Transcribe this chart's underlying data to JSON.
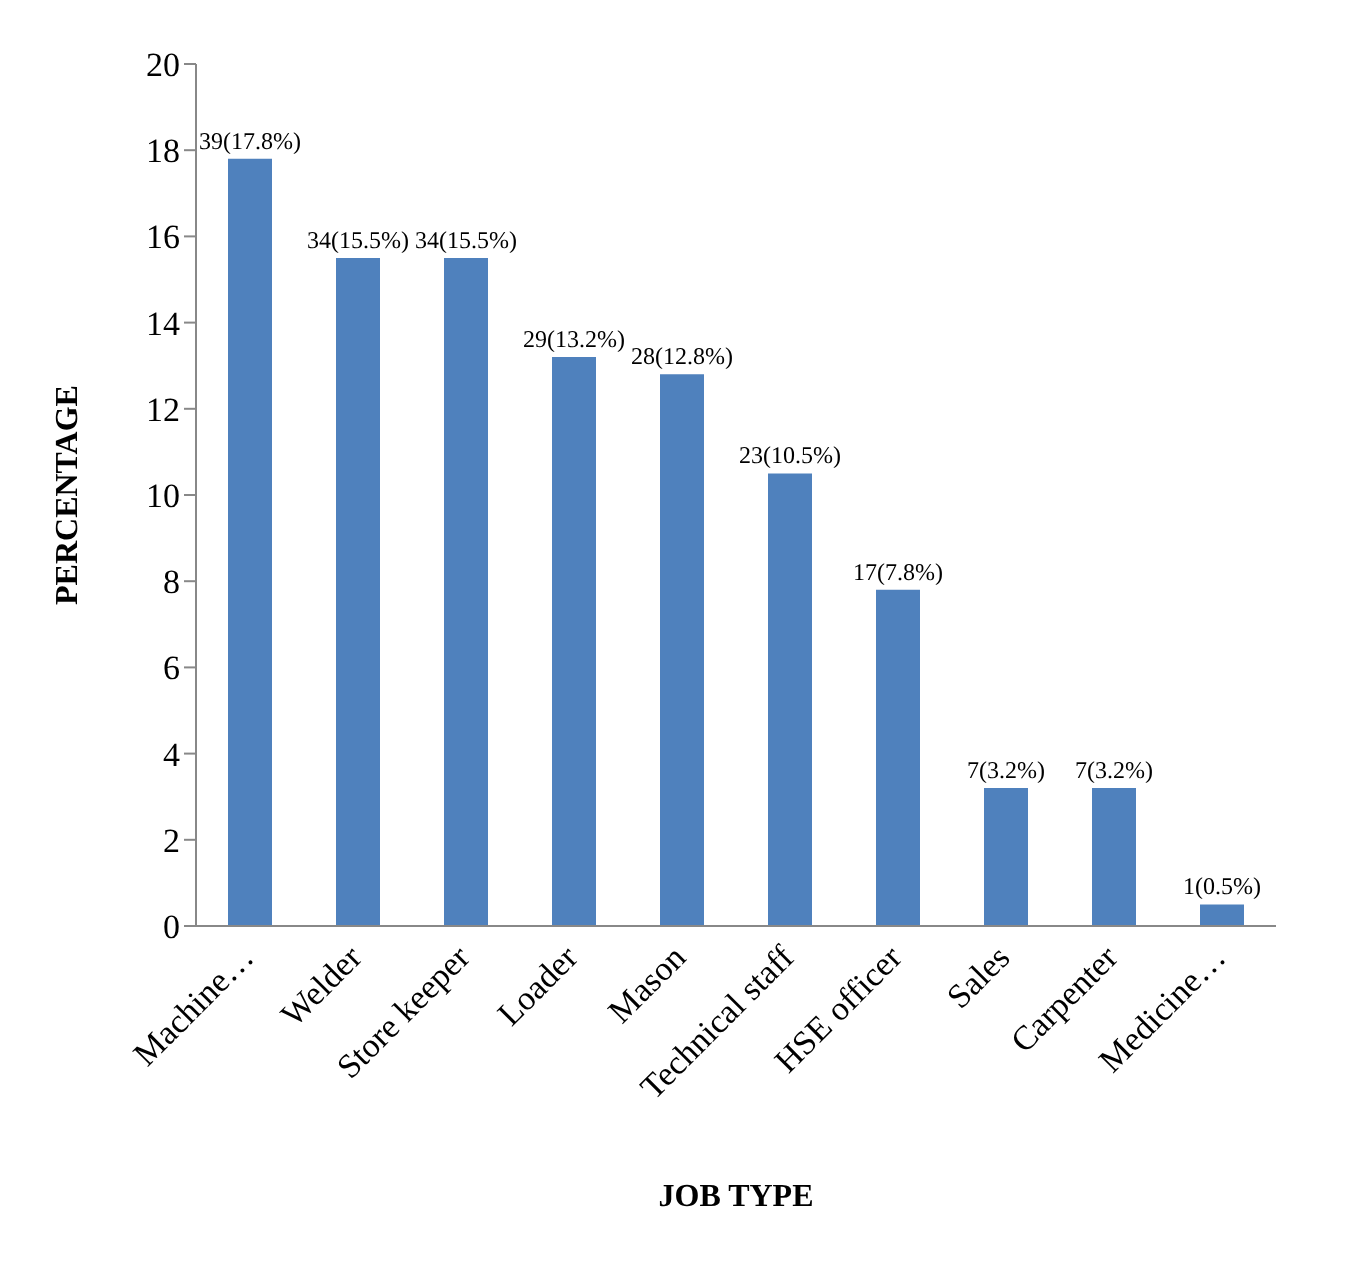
{
  "chart_data": {
    "type": "bar",
    "xlabel": "JOB TYPE",
    "ylabel": "PERCENTAGE",
    "categories": [
      "Machine…",
      "Welder",
      "Store keeper",
      "Loader",
      "Mason",
      "Technical staff",
      "HSE officer",
      "Sales",
      "Carpenter",
      "Medicine…"
    ],
    "values": [
      17.8,
      15.5,
      15.5,
      13.2,
      12.8,
      10.5,
      7.8,
      3.2,
      3.2,
      0.5
    ],
    "value_labels": [
      "39(17.8%)",
      "34(15.5%)",
      "34(15.5%)",
      "29(13.2%)",
      "28(12.8%)",
      "23(10.5%)",
      "17(7.8%)",
      "7(3.2%)",
      "7(3.2%)",
      "1(0.5%)"
    ],
    "color": "#4f81bd",
    "ylim": [
      0,
      20
    ],
    "yticks": [
      0,
      2,
      4,
      6,
      8,
      10,
      12,
      14,
      16,
      18,
      20
    ],
    "grid": false
  }
}
